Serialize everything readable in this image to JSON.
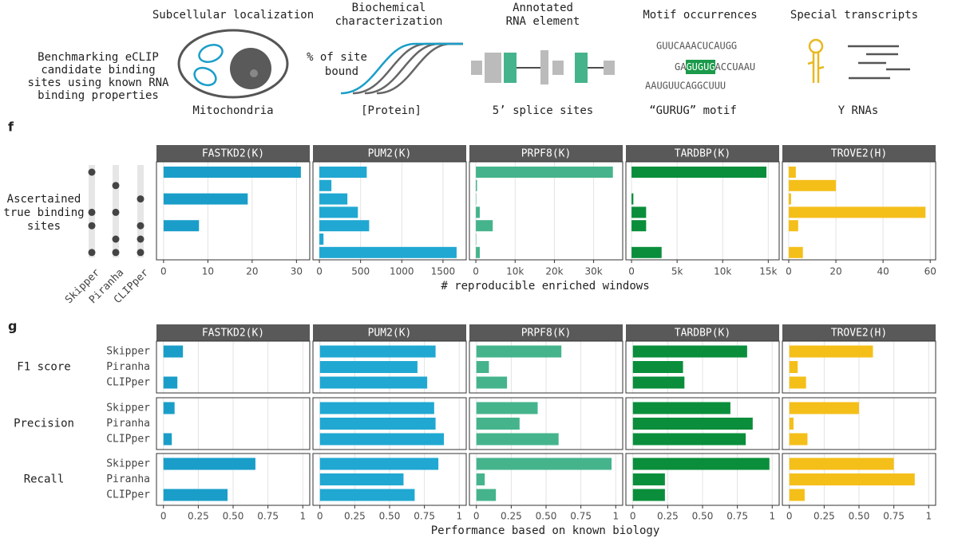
{
  "header": {
    "intro": [
      "Benchmarking eCLIP",
      "candidate binding",
      "sites using known RNA",
      "binding properties"
    ],
    "localization": {
      "title": "Subcellular localization",
      "caption": "Mitochondria"
    },
    "biochemical": {
      "title": [
        "Biochemical",
        "characterization"
      ],
      "y_label": [
        "% of site",
        "bound"
      ],
      "caption": "[Protein]"
    },
    "rna_element": {
      "title": [
        "Annotated",
        "RNA element"
      ],
      "caption": "5’ splice sites"
    },
    "motif": {
      "title": "Motif occurrences",
      "sequences": [
        [
          "GUUCAAACUCAUGG"
        ],
        [
          "GA",
          "GUGUG",
          "ACCUAAU"
        ],
        [
          "AAUGUUCAGGCUUU"
        ]
      ],
      "caption": "“GURUG” motif"
    },
    "special": {
      "title": "Special transcripts",
      "caption": "Y RNAs"
    }
  },
  "chart_data": [
    {
      "type": "bar",
      "label": "f",
      "y_label": [
        "Ascertained",
        "true binding",
        "sites"
      ],
      "x_label": "# reproducible enriched windows",
      "methods": [
        "Skipper",
        "Piranha",
        "CLIPper"
      ],
      "combinations": [
        [
          true,
          false,
          false
        ],
        [
          false,
          true,
          false
        ],
        [
          false,
          false,
          true
        ],
        [
          true,
          true,
          false
        ],
        [
          true,
          false,
          true
        ],
        [
          false,
          true,
          true
        ],
        [
          true,
          true,
          true
        ]
      ],
      "facets": [
        {
          "title": "FASTKD2(K)",
          "color": "#1a9ec9",
          "values": [
            31,
            0,
            19,
            0,
            8,
            0,
            0
          ],
          "xlim": [
            -1.6,
            33
          ],
          "xticks": [
            0,
            10,
            20,
            30
          ]
        },
        {
          "title": "PUM2(K)",
          "color": "#20a8d2",
          "values": [
            575,
            146,
            340,
            467,
            604,
            50,
            1665
          ],
          "xlim": [
            -78,
            1782
          ],
          "xticks": [
            0,
            500,
            1000,
            1500
          ]
        },
        {
          "title": "PRPF8(K)",
          "color": "#45b48c",
          "values": [
            34900,
            300,
            100,
            1000,
            4300,
            100,
            1000
          ],
          "xlim": [
            -1640,
            37400
          ],
          "xticks": [
            0,
            {
              "value": 10000,
              "label": "10k"
            },
            {
              "value": 20000,
              "label": "20k"
            },
            {
              "value": 30000,
              "label": "30k"
            }
          ]
        },
        {
          "title": "TARDBP(K)",
          "color": "#0a8e3b",
          "values": [
            14800,
            0,
            200,
            1600,
            1600,
            0,
            3300
          ],
          "xlim": [
            -620,
            16200
          ],
          "xticks": [
            0,
            {
              "value": 5000,
              "label": "5k"
            },
            {
              "value": 10000,
              "label": "10k"
            },
            {
              "value": 15000,
              "label": "15k"
            }
          ]
        },
        {
          "title": "TROVE2(H)",
          "color": "#f5bf1a",
          "values": [
            3,
            20,
            1,
            58,
            4,
            0,
            6
          ],
          "xlim": [
            -2.7,
            62.3
          ],
          "xticks": [
            0,
            20,
            40,
            60
          ]
        }
      ]
    },
    {
      "type": "bar",
      "label": "g",
      "x_label": "Performance based on known biology",
      "groups": [
        "F1 score",
        "Precision",
        "Recall"
      ],
      "categories": [
        "Skipper",
        "Piranha",
        "CLIPper"
      ],
      "facets": [
        {
          "title": "FASTKD2(K)",
          "color": "#1a9ec9",
          "values": [
            [
              0.14,
              0,
              0.1
            ],
            [
              0.08,
              0,
              0.06
            ],
            [
              0.66,
              0,
              0.46
            ]
          ],
          "xlim": [
            -0.05,
            1.05
          ],
          "xticks": [
            0,
            0.25,
            {
              "value": 0.5,
              "label": "0.50"
            },
            0.75,
            1
          ]
        },
        {
          "title": "PUM2(K)",
          "color": "#20a8d2",
          "values": [
            [
              0.83,
              0.7,
              0.77
            ],
            [
              0.82,
              0.83,
              0.89
            ],
            [
              0.85,
              0.6,
              0.68
            ]
          ],
          "xlim": [
            -0.05,
            1.05
          ],
          "xticks": [
            0,
            0.25,
            {
              "value": 0.5,
              "label": "0.50"
            },
            0.75,
            1
          ]
        },
        {
          "title": "PRPF8(K)",
          "color": "#45b48c",
          "values": [
            [
              0.61,
              0.09,
              0.22
            ],
            [
              0.44,
              0.31,
              0.59
            ],
            [
              0.97,
              0.06,
              0.14
            ]
          ],
          "xlim": [
            -0.05,
            1.05
          ],
          "xticks": [
            0,
            0.25,
            {
              "value": 0.5,
              "label": "0.50"
            },
            0.75,
            1
          ]
        },
        {
          "title": "TARDBP(K)",
          "color": "#0a8e3b",
          "values": [
            [
              0.82,
              0.36,
              0.37
            ],
            [
              0.7,
              0.86,
              0.81
            ],
            [
              0.98,
              0.23,
              0.23
            ]
          ],
          "xlim": [
            -0.05,
            1.05
          ],
          "xticks": [
            0,
            0.25,
            {
              "value": 0.5,
              "label": "0.50"
            },
            0.75,
            1
          ]
        },
        {
          "title": "TROVE2(H)",
          "color": "#f5bf1a",
          "values": [
            [
              0.6,
              0.06,
              0.12
            ],
            [
              0.5,
              0.03,
              0.13
            ],
            [
              0.75,
              0.9,
              0.11
            ]
          ],
          "xlim": [
            -0.05,
            1.05
          ],
          "xticks": [
            0,
            0.25,
            {
              "value": 0.5,
              "label": "0.50"
            },
            0.75,
            1
          ]
        }
      ]
    }
  ]
}
